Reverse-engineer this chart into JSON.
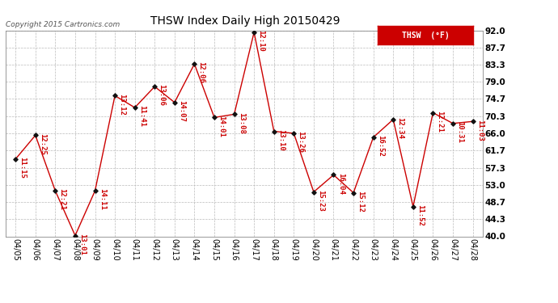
{
  "title": "THSW Index Daily High 20150429",
  "copyright": "Copyright 2015 Cartronics.com",
  "legend_label": "THSW  (°F)",
  "legend_bg": "#cc0000",
  "legend_text_color": "#ffffff",
  "line_color": "#cc0000",
  "marker_color": "#111111",
  "background_color": "#ffffff",
  "grid_color": "#bbbbbb",
  "ylim": [
    40.0,
    92.0
  ],
  "yticks": [
    40.0,
    44.3,
    48.7,
    53.0,
    57.3,
    61.7,
    66.0,
    70.3,
    74.7,
    79.0,
    83.3,
    87.7,
    92.0
  ],
  "dates": [
    "04/05",
    "04/06",
    "04/07",
    "04/08",
    "04/09",
    "04/10",
    "04/11",
    "04/12",
    "04/13",
    "04/14",
    "04/15",
    "04/16",
    "04/17",
    "04/18",
    "04/19",
    "04/20",
    "04/21",
    "04/22",
    "04/23",
    "04/24",
    "04/25",
    "04/26",
    "04/27",
    "04/28"
  ],
  "values": [
    59.5,
    65.5,
    51.5,
    40.2,
    51.5,
    75.5,
    72.5,
    77.8,
    73.8,
    83.5,
    70.0,
    70.8,
    91.5,
    66.5,
    66.0,
    51.2,
    55.5,
    51.0,
    65.0,
    69.5,
    47.5,
    71.2,
    68.5,
    69.0
  ],
  "labels": [
    "11:15",
    "12:25",
    "12:21",
    "13:01",
    "14:11",
    "13:12",
    "11:41",
    "13:06",
    "14:07",
    "12:06",
    "14:01",
    "13:08",
    "12:10",
    "13:10",
    "13:26",
    "15:23",
    "16:04",
    "15:12",
    "16:52",
    "12:34",
    "11:52",
    "12:21",
    "10:31",
    "11:03"
  ],
  "label_color": "#cc0000",
  "label_fontsize": 6.5,
  "tick_fontsize": 7.5,
  "xtick_fontsize": 7.0,
  "title_fontsize": 10.0
}
